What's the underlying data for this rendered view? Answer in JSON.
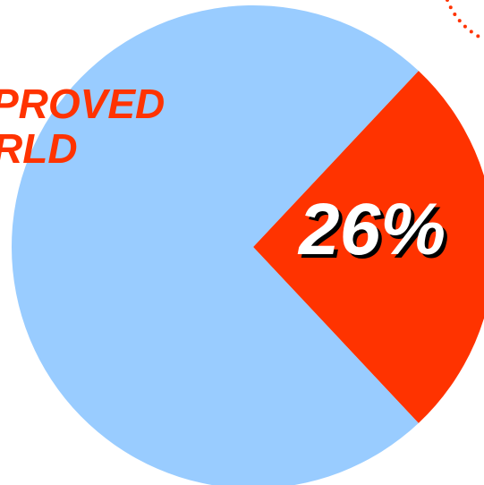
{
  "chart_data": {
    "type": "pie",
    "slices": [
      {
        "value": 26,
        "label": "26%",
        "color": "#ff3300"
      },
      {
        "value": 74,
        "label": "",
        "color": "#99ccff"
      }
    ],
    "partial_label_lines": [
      "PROVED",
      "RLD"
    ],
    "partial_label_color": "#ff3300",
    "slice_label_color": "#ffffff",
    "slice_label_shadow_color": "#000000",
    "decoration_color": "#ff3300"
  }
}
